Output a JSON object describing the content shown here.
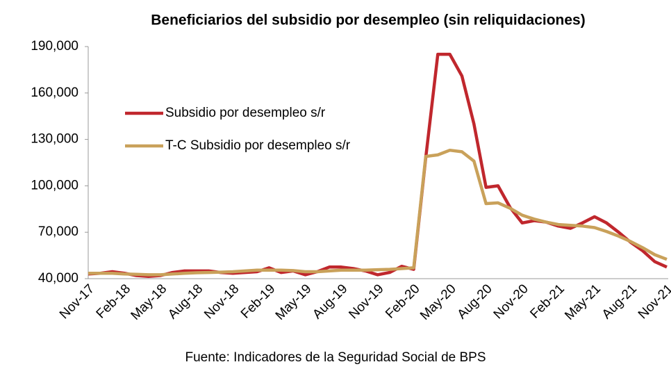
{
  "chart_data": {
    "type": "line",
    "title": "Beneficiarios del subsidio por desempleo (sin reliquidaciones)",
    "source": "Fuente: Indicadores de la Seguridad Social de BPS",
    "categories": [
      "Nov-17",
      null,
      null,
      "Feb-18",
      null,
      null,
      "May-18",
      null,
      null,
      "Aug-18",
      null,
      null,
      "Nov-18",
      null,
      null,
      "Feb-19",
      null,
      null,
      "May-19",
      null,
      null,
      "Aug-19",
      null,
      null,
      "Nov-19",
      null,
      null,
      "Feb-20",
      null,
      null,
      "May-20",
      null,
      null,
      "Aug-20",
      null,
      null,
      "Nov-20",
      null,
      null,
      "Feb-21",
      null,
      null,
      "May-21",
      null,
      null,
      "Aug-21",
      null,
      null,
      "Nov-21"
    ],
    "series": [
      {
        "name": "Subsidio por desempleo s/r",
        "color": "#c0272d",
        "values": [
          43000,
          43500,
          44500,
          43500,
          42000,
          41500,
          42000,
          44000,
          45000,
          45000,
          45000,
          44000,
          43500,
          44000,
          44500,
          47000,
          44000,
          45000,
          42500,
          44500,
          47500,
          47500,
          46500,
          45000,
          42500,
          44000,
          48000,
          46000,
          118000,
          185000,
          185000,
          171000,
          140000,
          99000,
          100000,
          86000,
          76000,
          77500,
          76500,
          74000,
          72500,
          76000,
          80000,
          76000,
          70000,
          63500,
          58000,
          51000,
          47500
        ]
      },
      {
        "name": "T-C Subsidio por desempleo s/r",
        "color": "#c9a15a",
        "values": [
          43500,
          43500,
          43500,
          43000,
          42800,
          42500,
          42500,
          43000,
          43500,
          43800,
          44000,
          44200,
          44500,
          45000,
          45500,
          45500,
          45500,
          45200,
          44500,
          44500,
          45000,
          45500,
          45500,
          45500,
          45800,
          46000,
          46500,
          47000,
          119000,
          120000,
          123000,
          122000,
          116000,
          88500,
          89000,
          85500,
          81000,
          78500,
          76500,
          75000,
          74500,
          74000,
          73000,
          70500,
          67500,
          64000,
          60000,
          55500,
          52500
        ]
      }
    ],
    "ylim": [
      40000,
      190000
    ],
    "yticks": [
      {
        "value": 40000,
        "label": "40,000"
      },
      {
        "value": 70000,
        "label": "70,000"
      },
      {
        "value": 100000,
        "label": "100,000"
      },
      {
        "value": 130000,
        "label": "130,000"
      },
      {
        "value": 160000,
        "label": "160,000"
      },
      {
        "value": 190000,
        "label": "190,000"
      }
    ],
    "legend": "upper left",
    "grid": false
  }
}
